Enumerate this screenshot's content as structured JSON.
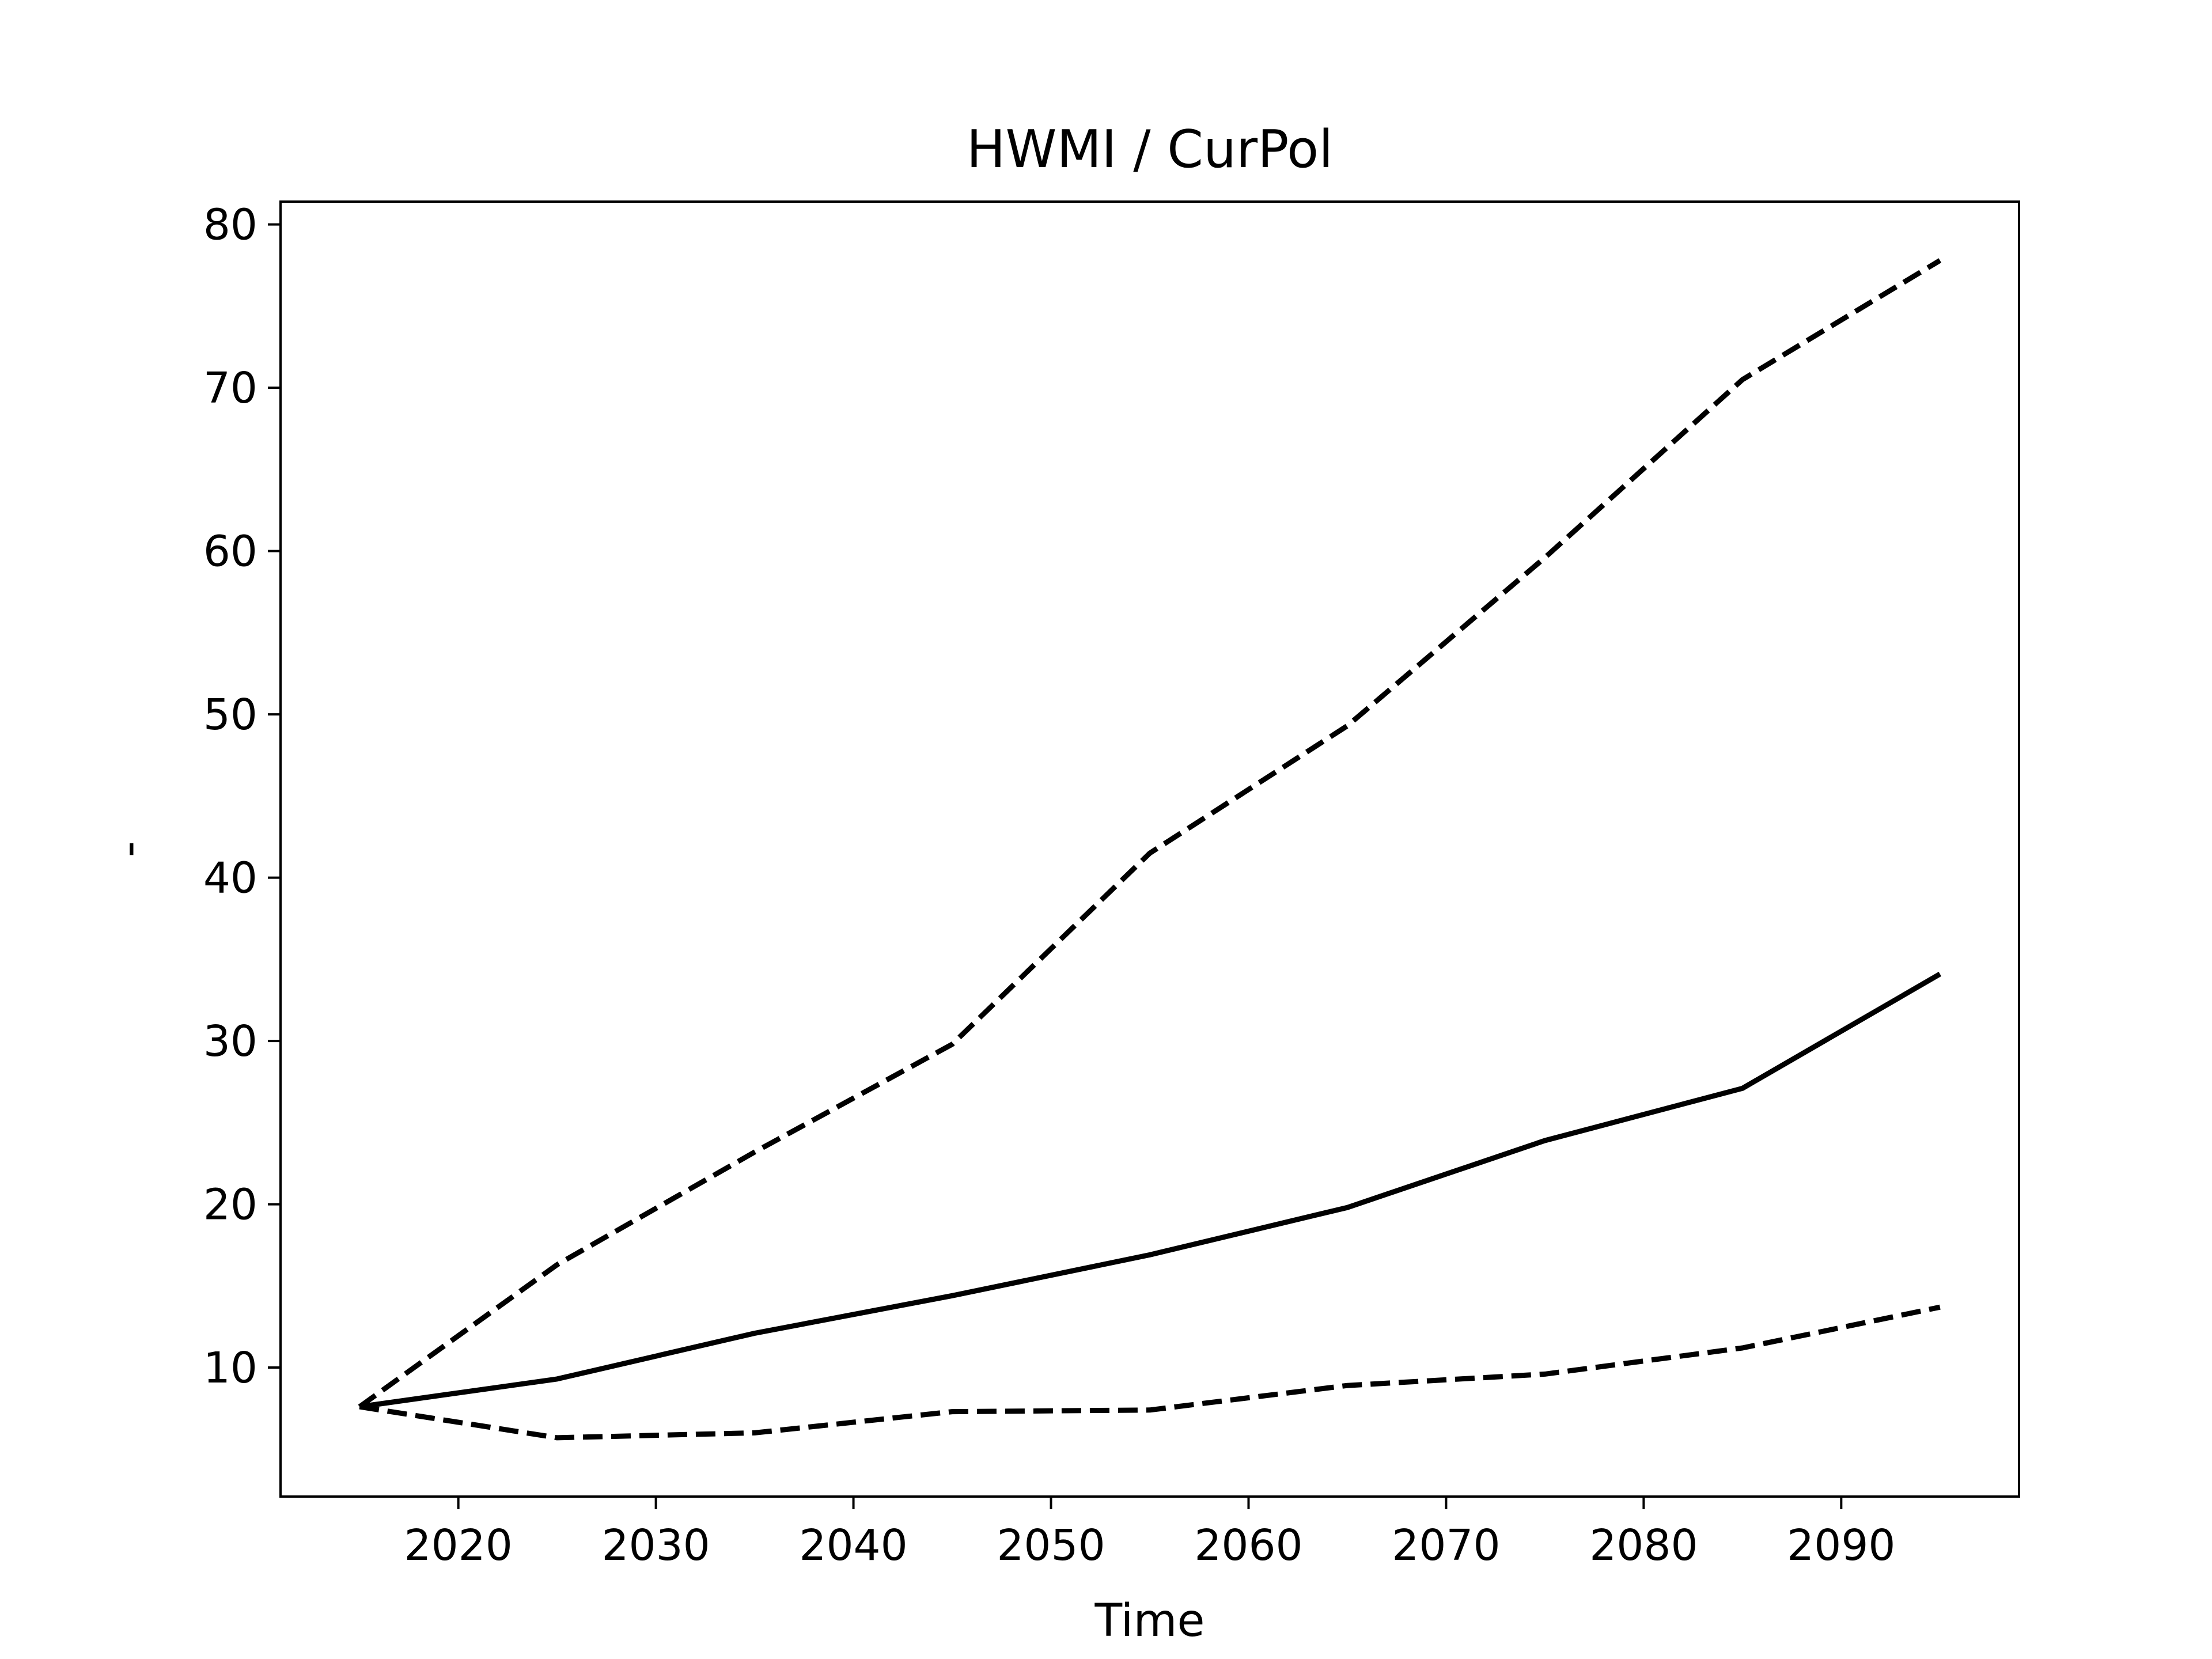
{
  "chart_data": {
    "type": "line",
    "title": "HWMI / CurPol",
    "xlabel": "Time",
    "ylabel": "-",
    "x": [
      2015,
      2025,
      2035,
      2045,
      2055,
      2065,
      2075,
      2085,
      2095
    ],
    "series": [
      {
        "color": "#000000",
        "style": "solid",
        "values": [
          7.6,
          9.3,
          12.1,
          14.4,
          16.9,
          19.8,
          23.9,
          27.1,
          34.1
        ]
      },
      {
        "color": "#000000",
        "style": "dashed",
        "values": [
          7.6,
          16.3,
          23.2,
          29.8,
          41.5,
          49.3,
          59.6,
          70.5,
          77.8
        ]
      },
      {
        "color": "#000000",
        "style": "dashed",
        "values": [
          7.6,
          5.7,
          6.0,
          7.3,
          7.4,
          8.9,
          9.6,
          11.2,
          13.7
        ]
      }
    ],
    "xlim": [
      2011,
      2099
    ],
    "ylim": [
      2.1,
      81.4
    ],
    "xticks": [
      2020,
      2030,
      2040,
      2050,
      2060,
      2070,
      2080,
      2090
    ],
    "yticks": [
      10,
      20,
      30,
      40,
      50,
      60,
      70,
      80
    ],
    "grid": false
  }
}
